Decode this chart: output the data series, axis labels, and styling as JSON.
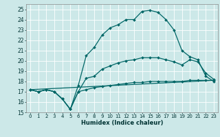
{
  "xlabel": "Humidex (Indice chaleur)",
  "xlim": [
    -0.5,
    23.5
  ],
  "ylim": [
    15,
    25.5
  ],
  "yticks": [
    15,
    16,
    17,
    18,
    19,
    20,
    21,
    22,
    23,
    24,
    25
  ],
  "xticks": [
    0,
    1,
    2,
    3,
    4,
    5,
    6,
    7,
    8,
    9,
    10,
    11,
    12,
    13,
    14,
    15,
    16,
    17,
    18,
    19,
    20,
    21,
    22,
    23
  ],
  "bg_color": "#cce8e8",
  "line_color": "#006666",
  "line_peak": {
    "x": [
      0,
      1,
      2,
      3,
      4,
      5,
      6,
      7,
      8,
      9,
      10,
      11,
      12,
      13,
      14,
      15,
      16,
      17,
      18,
      19,
      20,
      21,
      22,
      23
    ],
    "y": [
      17.2,
      17.0,
      17.2,
      17.0,
      16.3,
      15.3,
      17.6,
      20.5,
      21.3,
      22.5,
      23.2,
      23.5,
      24.0,
      24.0,
      24.8,
      24.9,
      24.7,
      24.0,
      23.0,
      21.0,
      20.4,
      20.1,
      18.5,
      18.0
    ]
  },
  "line_mid": {
    "x": [
      0,
      1,
      2,
      3,
      4,
      5,
      6,
      7,
      8,
      9,
      10,
      11,
      12,
      13,
      14,
      15,
      16,
      17,
      18,
      19,
      20,
      21,
      22,
      23
    ],
    "y": [
      17.2,
      17.0,
      17.2,
      17.0,
      16.3,
      15.3,
      17.0,
      18.3,
      18.5,
      19.2,
      19.5,
      19.8,
      20.0,
      20.1,
      20.3,
      20.3,
      20.3,
      20.1,
      19.9,
      19.6,
      20.1,
      19.9,
      18.8,
      18.2
    ]
  },
  "line_flat": {
    "x": [
      0,
      1,
      2,
      3,
      4,
      5,
      6,
      7,
      8,
      9,
      10,
      11,
      12,
      13,
      14,
      15,
      16,
      17,
      18,
      19,
      20,
      21,
      22,
      23
    ],
    "y": [
      17.2,
      17.0,
      17.2,
      17.0,
      16.3,
      15.3,
      17.0,
      17.2,
      17.4,
      17.5,
      17.6,
      17.7,
      17.8,
      17.9,
      17.9,
      18.0,
      18.0,
      18.0,
      18.0,
      18.0,
      18.1,
      18.1,
      18.1,
      18.1
    ]
  },
  "line_straight": {
    "x": [
      0,
      23
    ],
    "y": [
      17.2,
      18.1
    ]
  }
}
